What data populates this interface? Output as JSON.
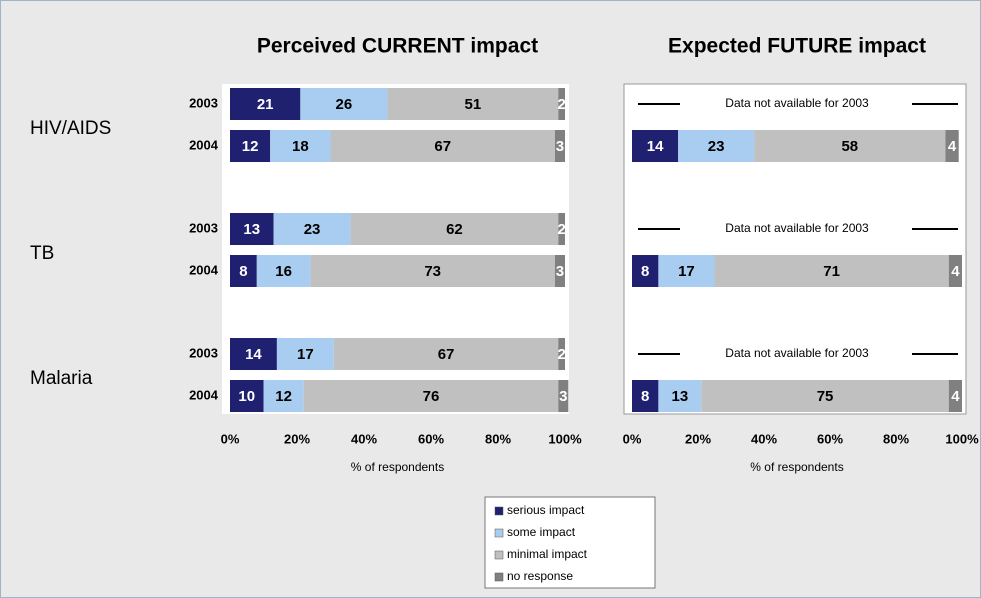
{
  "chart_data": [
    {
      "type": "bar",
      "orientation": "horizontal",
      "stacked": true,
      "title": "Perceived CURRENT impact",
      "groups": [
        "HIV/AIDS",
        "TB",
        "Malaria"
      ],
      "categories": [
        "2003",
        "2004",
        "2003",
        "2004",
        "2003",
        "2004"
      ],
      "series": [
        {
          "name": "serious impact",
          "color": "#1f2070",
          "values": [
            21,
            12,
            13,
            8,
            14,
            10
          ]
        },
        {
          "name": "some impact",
          "color": "#a9cdf0",
          "values": [
            26,
            18,
            23,
            16,
            17,
            12
          ]
        },
        {
          "name": "minimal impact",
          "color": "#c0c0c0",
          "values": [
            51,
            67,
            62,
            73,
            67,
            76
          ]
        },
        {
          "name": "no response",
          "color": "#808080",
          "values": [
            2,
            3,
            2,
            3,
            2,
            3
          ]
        }
      ],
      "xlim": [
        0,
        100
      ],
      "xticks": [
        {
          "value": 0,
          "label": "0%"
        },
        {
          "value": 20,
          "label": "20%"
        },
        {
          "value": 40,
          "label": "40%"
        },
        {
          "value": 60,
          "label": "60%"
        },
        {
          "value": 80,
          "label": "80%"
        },
        {
          "value": 100,
          "label": "100%"
        }
      ],
      "xlabel": "% of respondents",
      "legend": "bottom"
    },
    {
      "type": "bar",
      "orientation": "horizontal",
      "stacked": true,
      "title": "Expected FUTURE impact",
      "series": [
        {
          "name": "serious impact",
          "color": "#1f2070",
          "values": [
            null,
            14,
            null,
            8,
            null,
            8
          ]
        },
        {
          "name": "some impact",
          "color": "#a9cdf0",
          "values": [
            null,
            23,
            null,
            17,
            null,
            13
          ]
        },
        {
          "name": "minimal impact",
          "color": "#c0c0c0",
          "values": [
            null,
            58,
            null,
            71,
            null,
            75
          ]
        },
        {
          "name": "no response",
          "color": "#808080",
          "values": [
            null,
            4,
            null,
            4,
            null,
            4
          ]
        }
      ],
      "annotation": "Data not available for 2003",
      "xlim": [
        0,
        100
      ],
      "xticks": [
        {
          "value": 0,
          "label": "0%"
        },
        {
          "value": 20,
          "label": "20%"
        },
        {
          "value": 40,
          "label": "40%"
        },
        {
          "value": 60,
          "label": "60%"
        },
        {
          "value": 80,
          "label": "80%"
        },
        {
          "value": 100,
          "label": "100%"
        }
      ],
      "xlabel": "% of respondents"
    }
  ]
}
